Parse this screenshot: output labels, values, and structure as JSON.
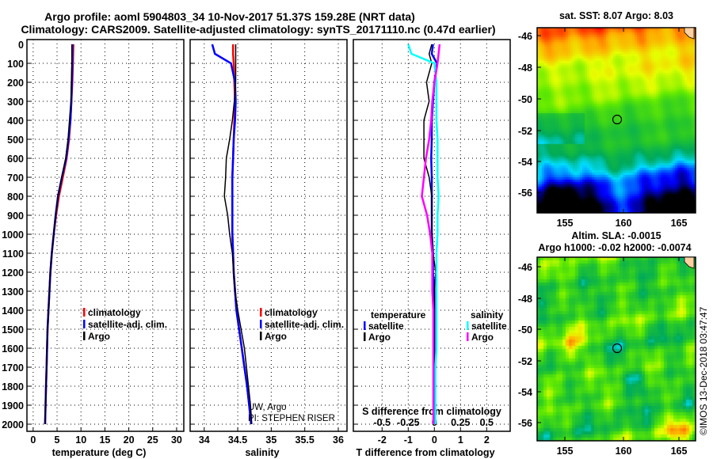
{
  "title": {
    "line1": "Argo profile: aoml 5904803_34 10-Nov-2017 51.37S 159.28E (NRT data)",
    "line2": "Climatology: CARS2009. Satellite-adjusted climatology: synTS_20171110.nc (0.47d earlier)"
  },
  "credit": {
    "line1": "UW, Argo",
    "line2": "PI: STEPHEN RISER"
  },
  "copyright": "©IMOS 13-Dec-2018 03:47:47",
  "colors": {
    "climatology": "#ff0000",
    "satellite": "#0000ff",
    "argo": "#000000",
    "sal_satellite": "#00ffff",
    "sal_argo": "#ff00ff"
  },
  "chart_data": [
    {
      "type": "line",
      "id": "temperature",
      "xlabel": "temperature (deg C)",
      "ylabel": "",
      "xlim": [
        -1.3,
        31.5
      ],
      "ylim": [
        0,
        2035
      ],
      "y_inverted": true,
      "grid": true,
      "xticks": [
        "0",
        "5",
        "10",
        "15",
        "20",
        "25",
        "30"
      ],
      "yticks": [
        "0",
        "100",
        "200",
        "300",
        "400",
        "500",
        "600",
        "700",
        "800",
        "900",
        "1000",
        "1100",
        "1200",
        "1300",
        "1400",
        "1500",
        "1600",
        "1700",
        "1800",
        "1900",
        "2000"
      ],
      "depth": [
        0,
        100,
        200,
        300,
        400,
        500,
        600,
        700,
        800,
        900,
        1000,
        1100,
        1200,
        1300,
        1400,
        1500,
        1600,
        1700,
        1800,
        1900,
        2000
      ],
      "series": [
        {
          "name": "climatology",
          "color": "#ff0000",
          "values": [
            8.4,
            8.3,
            8.2,
            8.0,
            7.8,
            7.5,
            7.0,
            6.2,
            5.4,
            4.8,
            4.3,
            3.9,
            3.6,
            3.4,
            3.2,
            3.0,
            2.9,
            2.8,
            2.7,
            2.6,
            2.5
          ]
        },
        {
          "name": "satellite-adj. clim.",
          "color": "#0000ff",
          "values": [
            8.2,
            8.2,
            8.1,
            8.0,
            7.8,
            7.4,
            6.9,
            6.0,
            5.2,
            4.7,
            4.3,
            3.9,
            3.6,
            3.4,
            3.2,
            3.0,
            2.9,
            2.8,
            2.7,
            2.6,
            2.5
          ]
        },
        {
          "name": "Argo",
          "color": "#000000",
          "values": [
            8.1,
            8.1,
            8.0,
            7.9,
            7.6,
            7.3,
            6.8,
            6.0,
            5.2,
            4.7,
            4.3,
            3.9,
            3.6,
            3.4,
            3.2,
            3.0,
            2.9,
            2.8,
            2.7,
            2.6,
            2.5
          ]
        }
      ],
      "legend": [
        "climatology",
        "satellite-adj. clim.",
        "Argo"
      ],
      "legend_position": "center"
    },
    {
      "type": "line",
      "id": "salinity",
      "xlabel": "salinity",
      "xlim": [
        33.79,
        36.13
      ],
      "ylim": [
        0,
        2035
      ],
      "y_inverted": true,
      "grid": true,
      "xticks": [
        "34",
        "34.5",
        "35",
        "35.5",
        "36"
      ],
      "depth": [
        0,
        50,
        100,
        200,
        300,
        400,
        500,
        600,
        700,
        800,
        900,
        1000,
        1100,
        1200,
        1300,
        1400,
        1500,
        1600,
        1700,
        1800,
        1900,
        2000
      ],
      "series": [
        {
          "name": "climatology",
          "color": "#ff0000",
          "values": [
            34.43,
            34.43,
            34.44,
            34.45,
            34.46,
            34.45,
            34.44,
            34.43,
            34.42,
            34.42,
            34.42,
            34.42,
            34.43,
            34.44,
            34.46,
            34.48,
            34.52,
            34.56,
            34.6,
            34.64,
            34.67,
            34.7
          ]
        },
        {
          "name": "satellite-adj. clim.",
          "color": "#0000ff",
          "values": [
            34.12,
            34.16,
            34.4,
            34.46,
            34.47,
            34.46,
            34.44,
            34.43,
            34.42,
            34.42,
            34.42,
            34.42,
            34.43,
            34.44,
            34.46,
            34.48,
            34.52,
            34.56,
            34.6,
            34.64,
            34.67,
            34.7
          ]
        },
        {
          "name": "Argo",
          "color": "#000000",
          "values": [
            34.47,
            34.47,
            34.47,
            34.47,
            34.45,
            34.42,
            34.38,
            34.33,
            34.32,
            34.3,
            34.35,
            34.38,
            34.42,
            34.44,
            34.46,
            34.5,
            34.55,
            34.6,
            34.63,
            34.66,
            34.69,
            34.71
          ]
        }
      ],
      "legend": [
        "climatology",
        "satellite-adj. clim.",
        "Argo"
      ],
      "legend_position": "center"
    },
    {
      "type": "line",
      "id": "difference",
      "xlabel": "T difference from climatology",
      "xlabel2": "S difference from climatology",
      "xlim": [
        -3.1,
        2.9
      ],
      "xlim2": [
        -0.775,
        0.725
      ],
      "ylim": [
        0,
        2035
      ],
      "y_inverted": true,
      "grid": true,
      "xticks": [
        "-2",
        "-1",
        "0",
        "1",
        "2"
      ],
      "xticks2": [
        "-0.5",
        "-0.25",
        "0",
        "0.25",
        "0.5"
      ],
      "depth": [
        0,
        50,
        100,
        200,
        300,
        400,
        500,
        600,
        700,
        800,
        900,
        1000,
        1100,
        1200,
        1300,
        1400,
        1500,
        1600,
        1700,
        1800,
        1900,
        2000
      ],
      "series": [
        {
          "name": "temperature satellite",
          "axis": "T",
          "color": "#0000ff",
          "values": [
            -0.05,
            -0.1,
            0.1,
            0,
            -0.05,
            -0.1,
            -0.1,
            -0.12,
            -0.1,
            -0.1,
            -0.1,
            -0.1,
            -0.05,
            -0.05,
            0,
            0,
            0,
            0,
            0,
            0,
            0,
            0
          ]
        },
        {
          "name": "temperature Argo",
          "axis": "T",
          "color": "#000000",
          "values": [
            -0.1,
            -0.2,
            -0.1,
            -0.3,
            -0.2,
            -0.4,
            -0.4,
            -0.4,
            -0.2,
            -0.1,
            -0.1,
            -0.1,
            -0.05,
            0.05,
            0,
            0,
            0,
            0,
            0,
            0,
            0,
            0
          ]
        },
        {
          "name": "salinity satellite",
          "axis": "S",
          "color": "#00ffff",
          "values": [
            -0.25,
            -0.22,
            0,
            0.02,
            0.02,
            0.02,
            0.03,
            0.03,
            0.03,
            0.04,
            0.03,
            0.03,
            0.02,
            0.02,
            0.02,
            0.02,
            0.02,
            0.02,
            0.01,
            0.01,
            0.01,
            0.01
          ]
        },
        {
          "name": "salinity Argo",
          "axis": "S",
          "color": "#ff00ff",
          "values": [
            0.05,
            0.04,
            0.03,
            0,
            -0.02,
            -0.03,
            -0.05,
            -0.08,
            -0.1,
            -0.12,
            -0.07,
            -0.04,
            -0.02,
            -0.02,
            -0.02,
            -0.01,
            -0.01,
            -0.01,
            -0.01,
            -0.01,
            -0.01,
            -0.01
          ]
        }
      ],
      "legend_titles": [
        "temperature",
        "salinity"
      ],
      "legend": [
        "satellite",
        "Argo",
        "satellite",
        "Argo"
      ]
    }
  ],
  "maps": [
    {
      "title": "sat. SST: 8.07 Argo: 8.03",
      "xticks": [
        "155",
        "160",
        "165"
      ],
      "yticks": [
        "-46",
        "-48",
        "-50",
        "-52",
        "-54",
        "-56"
      ]
    },
    {
      "title": "Altim. SLA: -0.0015",
      "subtitle": "Argo h1000: -0.02 h2000: -0.0074",
      "xticks": [
        "155",
        "160",
        "165"
      ],
      "yticks": [
        "-46",
        "-48",
        "-50",
        "-52",
        "-54",
        "-56"
      ]
    }
  ]
}
